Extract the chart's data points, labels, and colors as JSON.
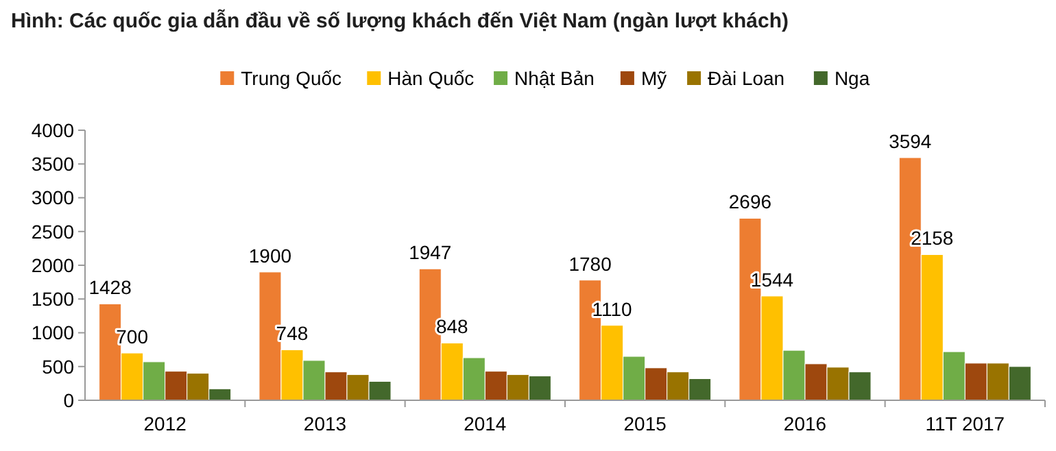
{
  "chart_data": {
    "type": "bar",
    "title": "Hình: Các quốc gia dẫn đầu về số lượng khách đến Việt Nam (ngàn lượt khách)",
    "categories": [
      "2012",
      "2013",
      "2014",
      "2015",
      "2016",
      "11T 2017"
    ],
    "series": [
      {
        "name": "Trung Quốc",
        "color": "#ed7d31",
        "values": [
          1428,
          1900,
          1947,
          1780,
          2696,
          3594
        ],
        "value_labels": [
          "1428",
          "1900",
          "1947",
          "1780",
          "2696",
          "3594"
        ]
      },
      {
        "name": "Hàn Quốc",
        "color": "#ffc000",
        "values": [
          700,
          748,
          848,
          1110,
          1544,
          2158
        ],
        "value_labels": [
          "700",
          "748",
          "848",
          "1110",
          "1544",
          "2158"
        ]
      },
      {
        "name": "Nhật Bản",
        "color": "#70ad47",
        "values": [
          570,
          590,
          630,
          650,
          740,
          720
        ]
      },
      {
        "name": "Mỹ",
        "color": "#9e480e",
        "values": [
          430,
          420,
          430,
          480,
          540,
          550
        ]
      },
      {
        "name": "Đài Loan",
        "color": "#997300",
        "values": [
          400,
          380,
          380,
          420,
          490,
          550
        ]
      },
      {
        "name": "Nga",
        "color": "#43682b",
        "values": [
          170,
          280,
          360,
          320,
          420,
          500
        ]
      }
    ],
    "ylim": [
      0,
      4000
    ],
    "yticks": [
      0,
      500,
      1000,
      1500,
      2000,
      2500,
      3000,
      3500,
      4000
    ],
    "legend": "top"
  }
}
